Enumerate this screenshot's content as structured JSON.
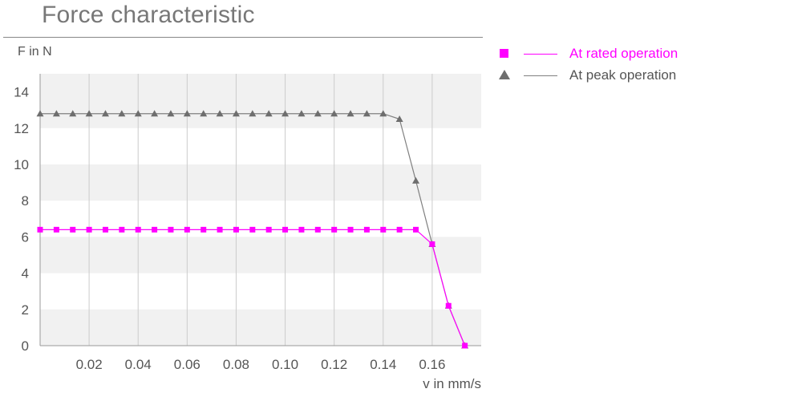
{
  "chart_data": {
    "type": "line",
    "title": "Force characteristic",
    "ylabel": "F in N",
    "xlabel": "v in mm/s",
    "xlim": [
      0.0,
      0.18
    ],
    "ylim": [
      0,
      15
    ],
    "xticks": [
      0.02,
      0.04,
      0.06,
      0.08,
      0.1,
      0.12,
      0.14,
      0.16
    ],
    "xtick_labels": [
      "0.02",
      "0.04",
      "0.06",
      "0.08",
      "0.10",
      "0.12",
      "0.14",
      "0.16"
    ],
    "yticks": [
      0,
      2,
      4,
      6,
      8,
      10,
      12,
      14
    ],
    "ytick_labels": [
      "0",
      "2",
      "4",
      "6",
      "8",
      "10",
      "12",
      "14"
    ],
    "grid": "vertical gridlines, alternating horizontal bands",
    "legend_position": "right",
    "series": [
      {
        "name": "At rated operation",
        "color": "#ff00ff",
        "marker": "square",
        "x": [
          0.0,
          0.00667,
          0.01333,
          0.02,
          0.02667,
          0.03333,
          0.04,
          0.04667,
          0.05333,
          0.06,
          0.06667,
          0.07333,
          0.08,
          0.08667,
          0.09333,
          0.1,
          0.10667,
          0.11333,
          0.12,
          0.12667,
          0.13333,
          0.14,
          0.14667,
          0.15333,
          0.16,
          0.16667,
          0.17333
        ],
        "y": [
          6.4,
          6.4,
          6.4,
          6.4,
          6.4,
          6.4,
          6.4,
          6.4,
          6.4,
          6.4,
          6.4,
          6.4,
          6.4,
          6.4,
          6.4,
          6.4,
          6.4,
          6.4,
          6.4,
          6.4,
          6.4,
          6.4,
          6.4,
          6.4,
          5.6,
          2.2,
          0.0
        ]
      },
      {
        "name": "At peak operation",
        "color": "#808080",
        "marker": "triangle",
        "x": [
          0.0,
          0.00667,
          0.01333,
          0.02,
          0.02667,
          0.03333,
          0.04,
          0.04667,
          0.05333,
          0.06,
          0.06667,
          0.07333,
          0.08,
          0.08667,
          0.09333,
          0.1,
          0.10667,
          0.11333,
          0.12,
          0.12667,
          0.13333,
          0.14,
          0.14667,
          0.15333,
          0.16,
          0.16667,
          0.17333
        ],
        "y": [
          12.8,
          12.8,
          12.8,
          12.8,
          12.8,
          12.8,
          12.8,
          12.8,
          12.8,
          12.8,
          12.8,
          12.8,
          12.8,
          12.8,
          12.8,
          12.8,
          12.8,
          12.8,
          12.8,
          12.8,
          12.8,
          12.8,
          12.5,
          9.1,
          5.6,
          2.2,
          0.0
        ]
      }
    ]
  }
}
